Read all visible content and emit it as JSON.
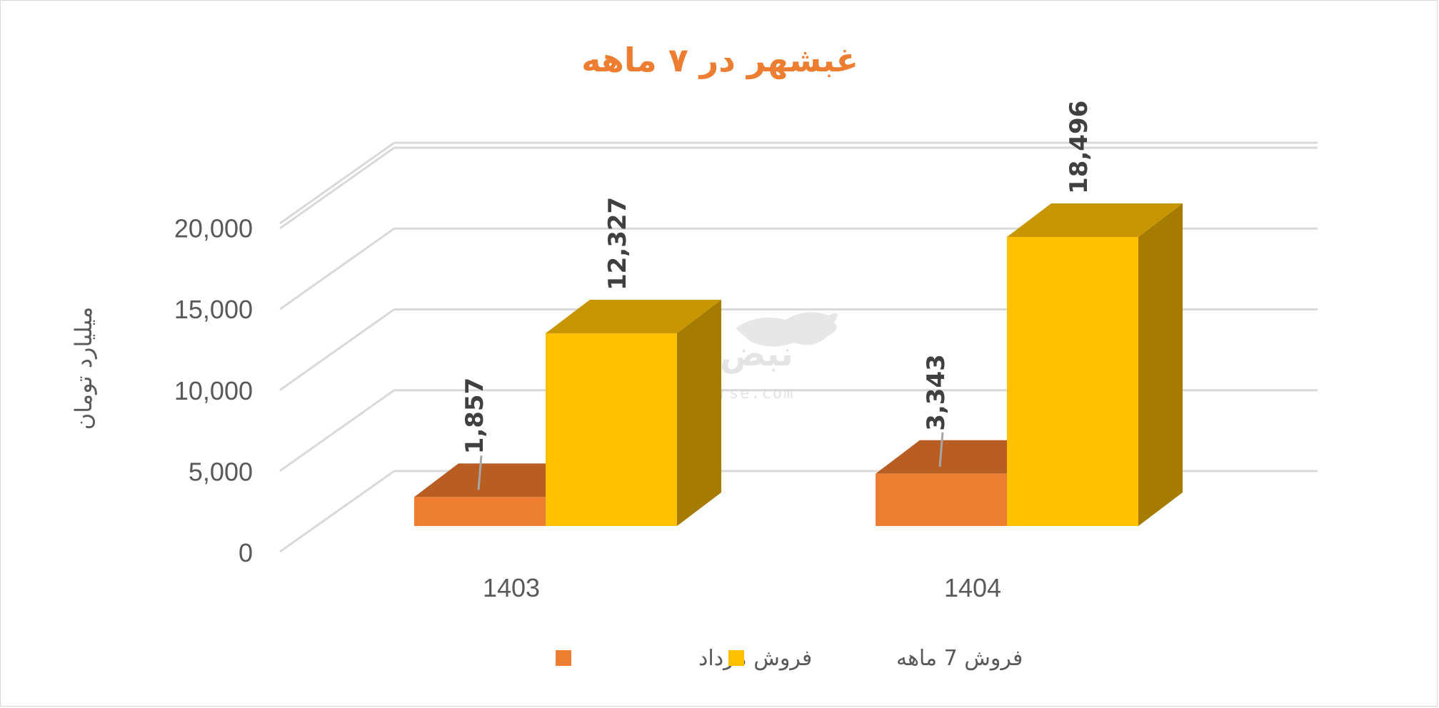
{
  "chart_data": {
    "type": "bar",
    "title": "غبشهر در ۷ ماهه",
    "ylabel": "میلیارد تومان",
    "xlabel": "",
    "categories": [
      "1403",
      "1404"
    ],
    "series": [
      {
        "name": "فروش مرداد",
        "values": [
          1857,
          3343
        ],
        "labels": [
          "1,857",
          "3,343"
        ],
        "color": "#ED7D31",
        "top_color": "#B85E22"
      },
      {
        "name": "فروش 7  ماهه",
        "values": [
          12327,
          18496
        ],
        "labels": [
          "12,327",
          "18,496"
        ],
        "color": "#FFC000",
        "top_color": "#C79600",
        "side_color": "#A67C00"
      }
    ],
    "ylim": [
      0,
      20000
    ],
    "yticks": [
      "0",
      "5,000",
      "10,000",
      "15,000",
      "20,000"
    ],
    "grid": true,
    "legend": "bottom",
    "style": "3d-clustered-column"
  },
  "watermark": {
    "brand": "نبض بورس",
    "url": "nabzebourse.com"
  }
}
